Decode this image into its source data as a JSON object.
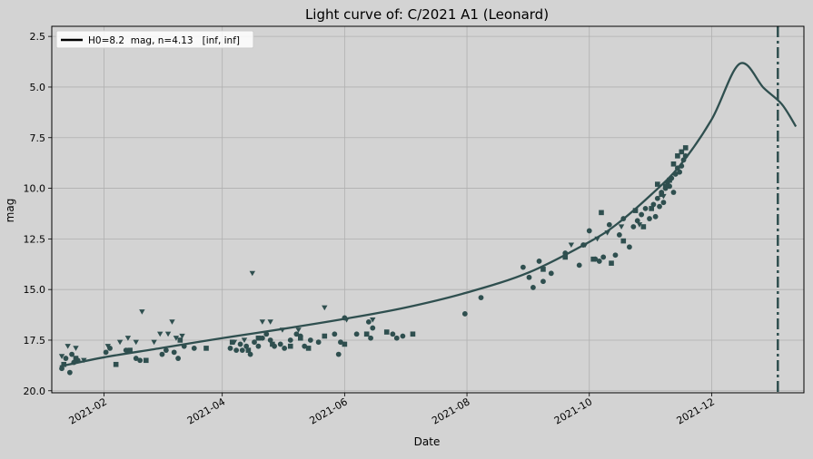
{
  "chart_data": {
    "type": "scatter",
    "title": "Light curve of: C/2021 A1 (Leonard)",
    "xlabel": "Date",
    "ylabel": "mag",
    "xlim": [
      "2021-01-06",
      "2022-01-16"
    ],
    "ylim": [
      20.1,
      2.0
    ],
    "y_inverted": true,
    "grid": true,
    "legend_position": "top-left",
    "colors": {
      "background": "#d3d3d3",
      "series": "#2f4f4f",
      "grid": "#b0b0b0"
    },
    "x_ticks": [
      {
        "date": "2021-02-01",
        "label": "2021-02"
      },
      {
        "date": "2021-04-01",
        "label": "2021-04"
      },
      {
        "date": "2021-06-01",
        "label": "2021-06"
      },
      {
        "date": "2021-08-01",
        "label": "2021-08"
      },
      {
        "date": "2021-10-01",
        "label": "2021-10"
      },
      {
        "date": "2021-12-01",
        "label": "2021-12"
      }
    ],
    "y_ticks": [
      {
        "value": 2.5,
        "label": "2.5"
      },
      {
        "value": 5.0,
        "label": "5.0"
      },
      {
        "value": 7.5,
        "label": "7.5"
      },
      {
        "value": 10.0,
        "label": "10.0"
      },
      {
        "value": 12.5,
        "label": "12.5"
      },
      {
        "value": 15.0,
        "label": "15.0"
      },
      {
        "value": 17.5,
        "label": "17.5"
      },
      {
        "value": 20.0,
        "label": "20.0"
      }
    ],
    "legend": [
      {
        "label": "H0=8.2  mag, n=4.13   [inf, inf]",
        "style": "black-line"
      }
    ],
    "model_curve": {
      "name": "H0=8.2  mag, n=4.13   [inf, inf]",
      "x": [
        "2021-01-10",
        "2021-02-01",
        "2021-03-01",
        "2021-04-01",
        "2021-05-01",
        "2021-06-01",
        "2021-07-01",
        "2021-08-01",
        "2021-09-01",
        "2021-10-01",
        "2021-10-15",
        "2021-11-01",
        "2021-11-15",
        "2021-12-01",
        "2021-12-15",
        "2021-12-27",
        "2022-01-05",
        "2022-01-12"
      ],
      "y": [
        18.8,
        18.35,
        17.9,
        17.4,
        16.95,
        16.45,
        15.9,
        15.15,
        14.15,
        12.65,
        11.75,
        10.3,
        8.9,
        6.6,
        3.85,
        5.05,
        5.85,
        6.95
      ]
    },
    "perihelion_line": {
      "date": "2022-01-03",
      "style": "dash-dot"
    },
    "series": [
      {
        "marker": "circle",
        "x": [
          "2021-01-11",
          "2021-01-13",
          "2021-01-15",
          "2021-01-16",
          "2021-01-17",
          "2021-01-19",
          "2021-02-02",
          "2021-02-04",
          "2021-02-12",
          "2021-02-17",
          "2021-02-19",
          "2021-03-02",
          "2021-03-04",
          "2021-03-08",
          "2021-03-10",
          "2021-03-13",
          "2021-03-18",
          "2021-04-05",
          "2021-04-08",
          "2021-04-10",
          "2021-04-11",
          "2021-04-13",
          "2021-04-15",
          "2021-04-17",
          "2021-04-19",
          "2021-04-21",
          "2021-04-23",
          "2021-04-25",
          "2021-04-27",
          "2021-04-30",
          "2021-05-02",
          "2021-05-05",
          "2021-05-08",
          "2021-05-10",
          "2021-05-12",
          "2021-05-15",
          "2021-05-19",
          "2021-05-27",
          "2021-05-29",
          "2021-05-30",
          "2021-06-01",
          "2021-06-07",
          "2021-06-13",
          "2021-06-14",
          "2021-06-15",
          "2021-06-25",
          "2021-06-27",
          "2021-06-30",
          "2021-07-31",
          "2021-08-08",
          "2021-08-29",
          "2021-09-01",
          "2021-09-03",
          "2021-09-06",
          "2021-09-08",
          "2021-09-12",
          "2021-09-19",
          "2021-09-26",
          "2021-09-28",
          "2021-10-01",
          "2021-10-04",
          "2021-10-06",
          "2021-10-08",
          "2021-10-11",
          "2021-10-14",
          "2021-10-16",
          "2021-10-18",
          "2021-10-21",
          "2021-10-23",
          "2021-10-25",
          "2021-10-27",
          "2021-10-29",
          "2021-10-31",
          "2021-11-02",
          "2021-11-03",
          "2021-11-04",
          "2021-11-05",
          "2021-11-06",
          "2021-11-07",
          "2021-11-08",
          "2021-11-09",
          "2021-11-10",
          "2021-11-11",
          "2021-11-12",
          "2021-11-13",
          "2021-11-14",
          "2021-11-15",
          "2021-11-16",
          "2021-11-17",
          "2021-11-18"
        ],
        "y": [
          18.9,
          18.4,
          19.1,
          18.2,
          18.6,
          18.5,
          18.1,
          17.9,
          18.0,
          18.4,
          18.5,
          18.2,
          18.0,
          18.1,
          18.4,
          17.8,
          17.9,
          17.9,
          18.0,
          17.7,
          18.0,
          17.8,
          18.2,
          17.6,
          17.8,
          17.4,
          17.2,
          17.5,
          17.8,
          17.7,
          17.9,
          17.5,
          17.2,
          17.3,
          17.8,
          17.5,
          17.6,
          17.2,
          18.2,
          17.6,
          16.4,
          17.2,
          16.6,
          17.4,
          16.9,
          17.2,
          17.4,
          17.3,
          16.2,
          15.4,
          13.9,
          14.4,
          14.9,
          13.6,
          14.6,
          14.2,
          13.2,
          13.8,
          12.8,
          12.1,
          13.5,
          13.6,
          13.4,
          11.8,
          13.3,
          12.3,
          11.5,
          12.9,
          11.9,
          11.6,
          11.3,
          11.0,
          11.5,
          10.8,
          11.4,
          10.5,
          10.9,
          10.2,
          10.7,
          10.0,
          9.7,
          9.9,
          9.5,
          10.2,
          9.3,
          9.0,
          9.2,
          8.9,
          8.6,
          8.4
        ]
      },
      {
        "marker": "square",
        "x": [
          "2021-01-12",
          "2021-01-18",
          "2021-02-07",
          "2021-02-14",
          "2021-02-22",
          "2021-03-11",
          "2021-03-24",
          "2021-04-06",
          "2021-04-14",
          "2021-04-19",
          "2021-04-26",
          "2021-05-05",
          "2021-05-10",
          "2021-05-14",
          "2021-05-22",
          "2021-06-01",
          "2021-06-12",
          "2021-06-22",
          "2021-07-05",
          "2021-09-08",
          "2021-09-19",
          "2021-10-03",
          "2021-10-07",
          "2021-10-12",
          "2021-10-18",
          "2021-10-24",
          "2021-10-28",
          "2021-11-01",
          "2021-11-04",
          "2021-11-06",
          "2021-11-08",
          "2021-11-10",
          "2021-11-12",
          "2021-11-14",
          "2021-11-16",
          "2021-11-18"
        ],
        "y": [
          18.7,
          18.4,
          18.7,
          18.0,
          18.5,
          17.5,
          17.9,
          17.6,
          18.0,
          17.4,
          17.7,
          17.8,
          17.4,
          17.9,
          17.3,
          17.7,
          17.2,
          17.1,
          17.2,
          14.0,
          13.4,
          13.5,
          11.2,
          13.7,
          12.6,
          11.1,
          11.9,
          11.0,
          9.8,
          10.3,
          9.9,
          9.6,
          8.8,
          8.4,
          8.2,
          8.0
        ]
      },
      {
        "marker": "triangle",
        "x": [
          "2021-01-11",
          "2021-01-14",
          "2021-01-18",
          "2021-01-22",
          "2021-02-03",
          "2021-02-09",
          "2021-02-13",
          "2021-02-17",
          "2021-02-20",
          "2021-02-26",
          "2021-03-01",
          "2021-03-05",
          "2021-03-07",
          "2021-03-09",
          "2021-03-12",
          "2021-04-07",
          "2021-04-12",
          "2021-04-16",
          "2021-04-21",
          "2021-04-25",
          "2021-05-01",
          "2021-05-09",
          "2021-05-22",
          "2021-06-02",
          "2021-06-15",
          "2021-09-22",
          "2021-09-29",
          "2021-10-05",
          "2021-10-10",
          "2021-10-17",
          "2021-10-26",
          "2021-11-07"
        ],
        "y": [
          18.3,
          17.8,
          17.9,
          18.5,
          17.8,
          17.6,
          17.4,
          17.6,
          16.1,
          17.6,
          17.2,
          17.2,
          16.6,
          17.4,
          17.3,
          17.6,
          17.5,
          14.2,
          16.6,
          16.6,
          17.0,
          17.0,
          15.9,
          16.5,
          16.5,
          12.8,
          12.8,
          12.5,
          12.2,
          11.9,
          11.8,
          10.4
        ]
      }
    ]
  }
}
